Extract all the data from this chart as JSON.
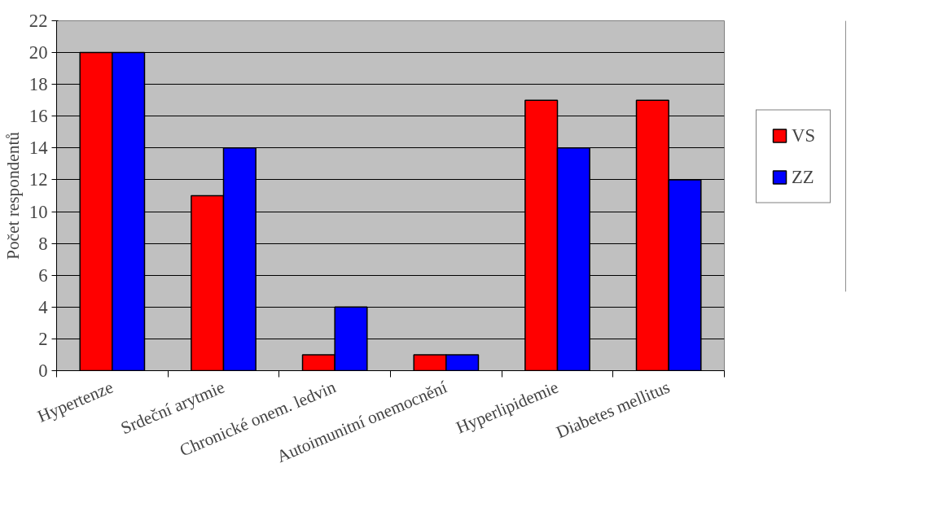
{
  "chart_data": {
    "type": "bar",
    "ylabel": "Počet respondentů",
    "categories": [
      "Hypertenze",
      "Srdeční arytmie",
      "Chronické onem. ledvin",
      "Autoimunitní onemocnění",
      "Hyperlipidemie",
      "Diabetes mellitus"
    ],
    "series": [
      {
        "name": "VS",
        "color": "#ff0000",
        "values": [
          20,
          11,
          1,
          1,
          17,
          17
        ]
      },
      {
        "name": "ZZ",
        "color": "#0000ff",
        "values": [
          20,
          14,
          4,
          1,
          14,
          12
        ]
      }
    ],
    "ylim": [
      0,
      22
    ],
    "yticks": [
      0,
      2,
      4,
      6,
      8,
      10,
      12,
      14,
      16,
      18,
      20,
      22
    ],
    "grid": "y",
    "legend": "right"
  }
}
